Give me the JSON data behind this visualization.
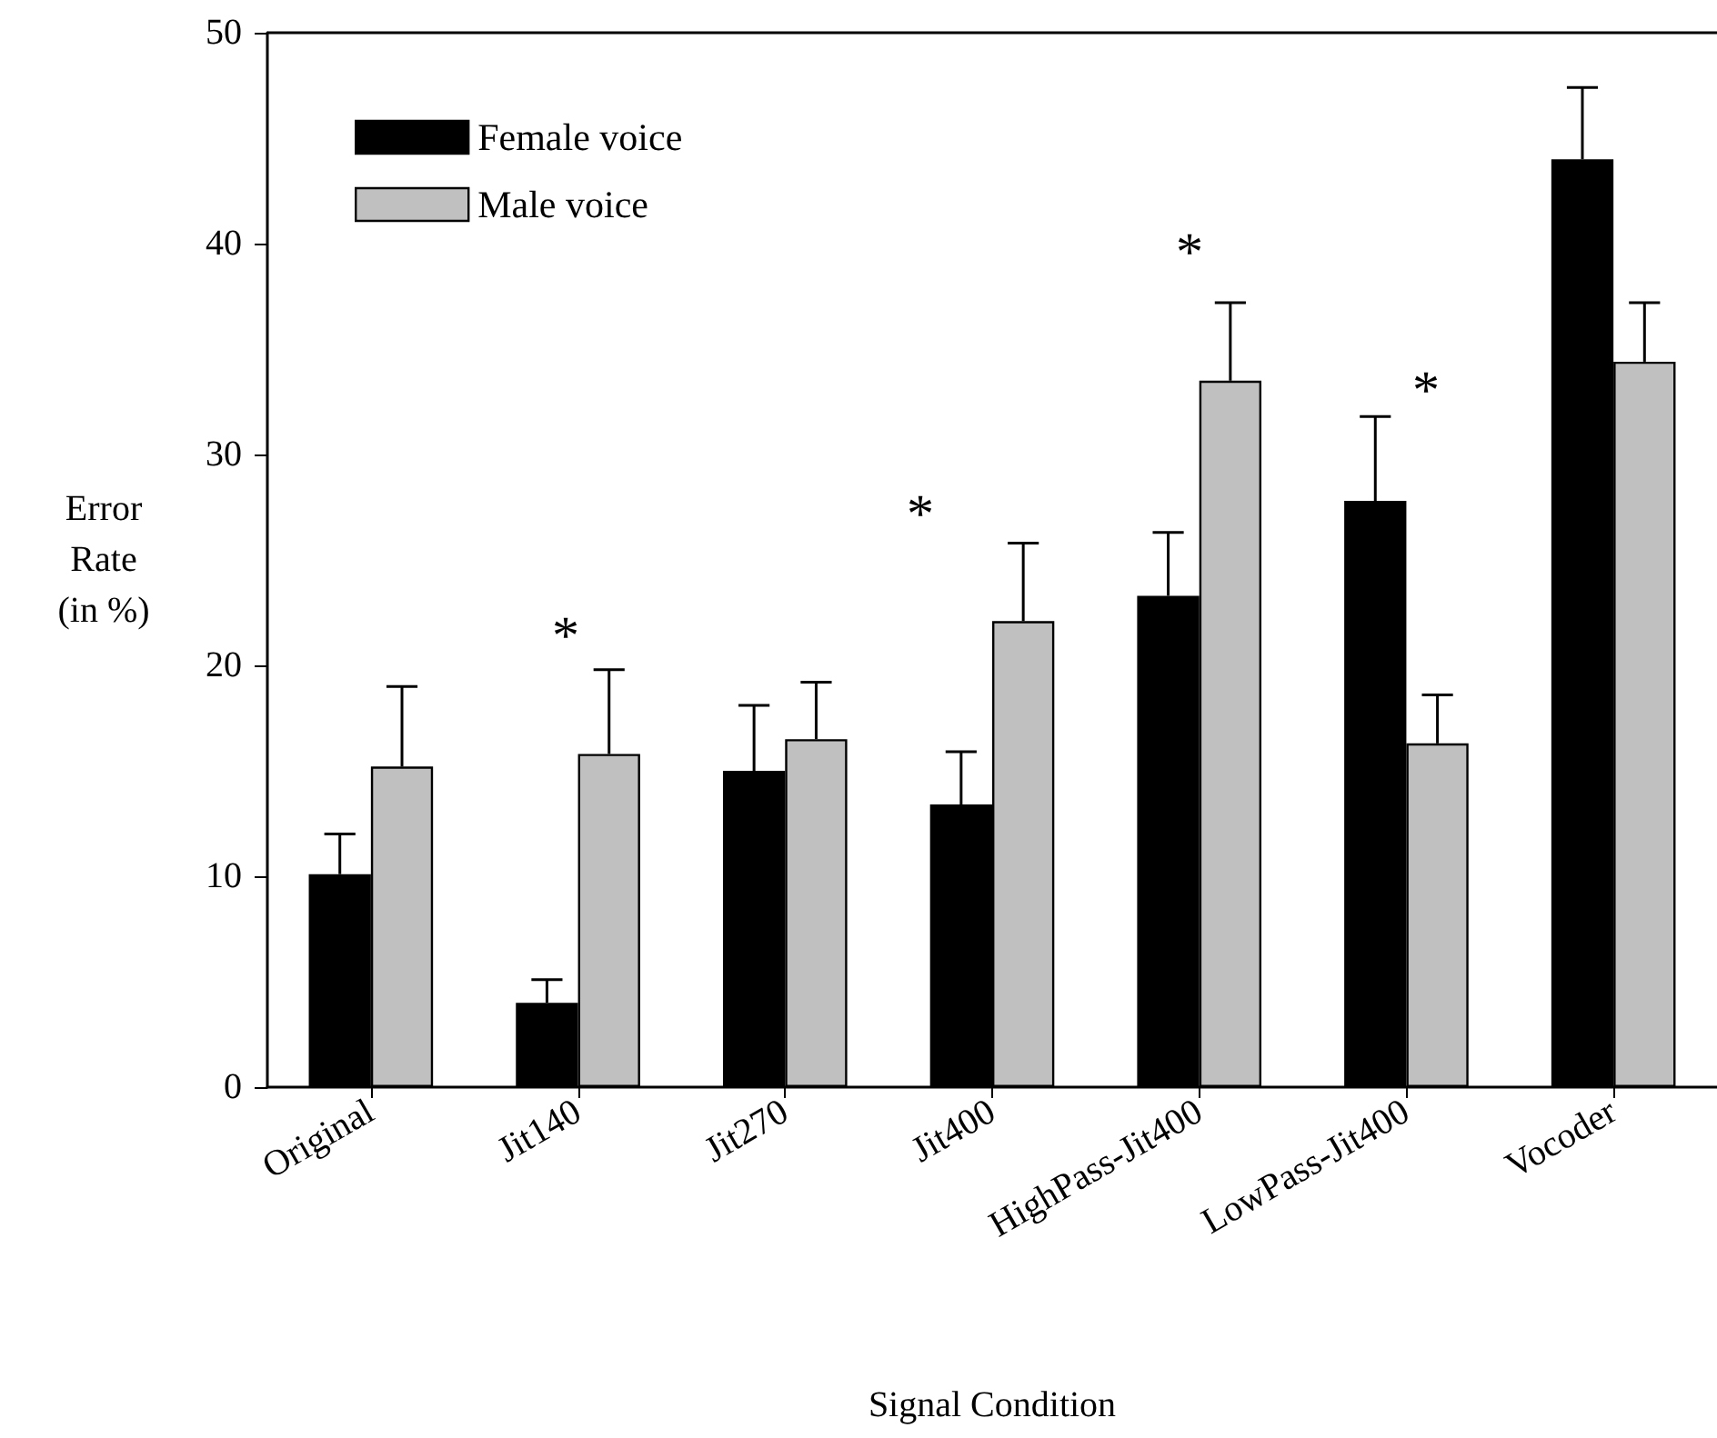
{
  "chart_data": {
    "type": "bar",
    "xlabel": "Signal Condition",
    "ylabel": "Error\nRate\n(in %)",
    "categories": [
      "Original",
      "Jit140",
      "Jit270",
      "Jit400",
      "HighPass-Jit400",
      "LowPass-Jit400",
      "Vocoder"
    ],
    "series": [
      {
        "name": "Female voice",
        "color": "#000000",
        "values": [
          10.1,
          4.0,
          15.0,
          13.4,
          23.3,
          27.8,
          44.0
        ],
        "errors": [
          [
            10.1,
            12.0
          ],
          [
            4.0,
            5.1
          ],
          [
            15.0,
            18.1
          ],
          [
            13.4,
            15.9
          ],
          [
            23.3,
            26.3
          ],
          [
            27.8,
            31.8
          ],
          [
            44.0,
            47.4
          ]
        ]
      },
      {
        "name": "Male voice",
        "color": "#c0c0c0",
        "values": [
          15.2,
          15.8,
          16.5,
          22.1,
          33.5,
          16.3,
          34.4
        ],
        "errors": [
          [
            15.2,
            19.0
          ],
          [
            15.8,
            19.8
          ],
          [
            16.5,
            19.2
          ],
          [
            22.1,
            25.8
          ],
          [
            33.5,
            37.2
          ],
          [
            16.3,
            18.6
          ],
          [
            34.4,
            37.2
          ]
        ]
      }
    ],
    "ylim": [
      0,
      50
    ],
    "yticks": [
      0,
      10,
      20,
      30,
      40,
      50
    ],
    "grid": false,
    "legend": "top left",
    "annotations": [
      "*",
      "*",
      "*",
      "*"
    ]
  }
}
